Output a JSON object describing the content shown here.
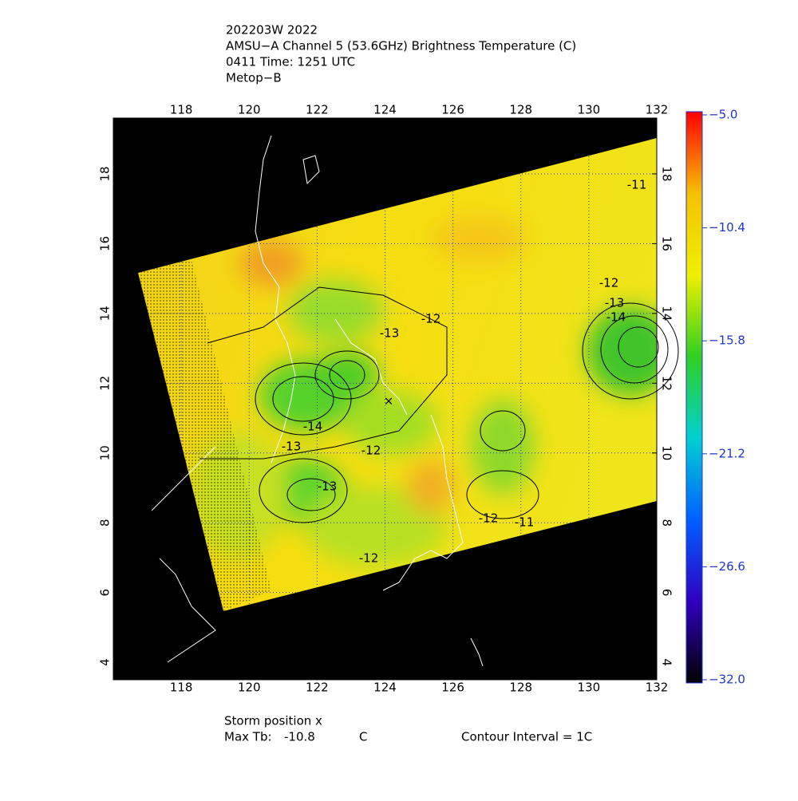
{
  "header": {
    "lines": [
      "202203W 2022",
      "AMSU−A Channel 5 (53.6GHz) Brightness Temperature (C)",
      "0411 Time: 1251 UTC",
      "Metop−B"
    ]
  },
  "map": {
    "xlim": [
      116,
      132
    ],
    "ylim": [
      3.5,
      19.6
    ],
    "xticks": [
      118,
      120,
      122,
      124,
      126,
      128,
      130,
      132
    ],
    "yticks": [
      4,
      6,
      8,
      10,
      12,
      14,
      16,
      18
    ],
    "contour_labels": [
      -11,
      -12,
      -13,
      -14,
      -12,
      -13,
      -14,
      -13,
      -12,
      -13,
      -12,
      -11,
      -12
    ]
  },
  "colorbar": {
    "clim": [
      -32,
      -5
    ],
    "ticks": [
      {
        "value": -5,
        "label": "−5.0"
      },
      {
        "value": -10.4,
        "label": "−10.4"
      },
      {
        "value": -15.8,
        "label": "−15.8"
      },
      {
        "value": -21.2,
        "label": "−21.2"
      },
      {
        "value": -26.6,
        "label": "−26.6"
      },
      {
        "value": -32,
        "label": "−32.0"
      }
    ]
  },
  "footer": {
    "storm": "Storm position x",
    "max_label": "Max Tb:",
    "max_tb": -10.8,
    "max_unit": "C",
    "interval": "Contour Interval = 1C"
  }
}
